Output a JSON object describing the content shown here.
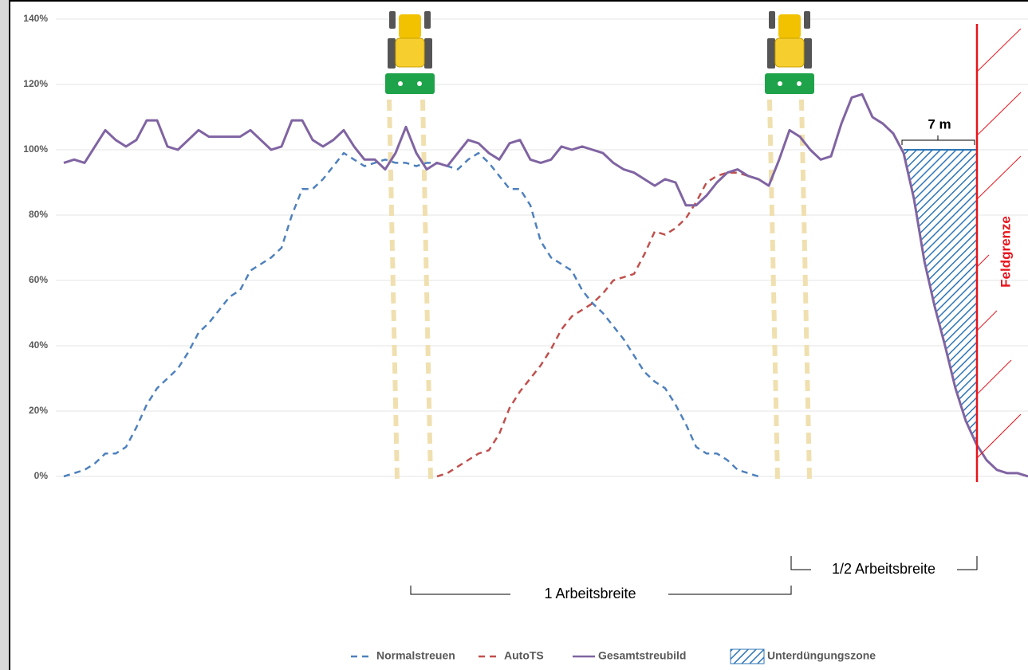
{
  "chart_data": {
    "type": "line",
    "ylim": [
      0,
      140
    ],
    "yticks": [
      {
        "value": 0,
        "label": "0%"
      },
      {
        "value": 20,
        "label": "20%"
      },
      {
        "value": 40,
        "label": "40%"
      },
      {
        "value": 60,
        "label": "60%"
      },
      {
        "value": 80,
        "label": "80%"
      },
      {
        "value": 100,
        "label": "100%"
      },
      {
        "value": 120,
        "label": "120%"
      },
      {
        "value": 140,
        "label": "140%"
      }
    ],
    "grid": true,
    "series": [
      {
        "name": "Normalstreuen",
        "color": "#4f81bd",
        "dash": true,
        "values": [
          0,
          1,
          2,
          4,
          7,
          7,
          9,
          15,
          22,
          27,
          30,
          33,
          38,
          44,
          47,
          51,
          55,
          57,
          63,
          65,
          67,
          70,
          80,
          88,
          88,
          91,
          95,
          99,
          97,
          95,
          96,
          97,
          96,
          96,
          95,
          96,
          96,
          95,
          94,
          97,
          99,
          96,
          92,
          88,
          88,
          83,
          72,
          67,
          65,
          63,
          57,
          53,
          50,
          46,
          42,
          37,
          32,
          29,
          27,
          22,
          16,
          9,
          7,
          7,
          5,
          2,
          1,
          0,
          null,
          null,
          null,
          null,
          null,
          null,
          null,
          null,
          null,
          null,
          null,
          null,
          null,
          null,
          null,
          null,
          null,
          null,
          null,
          null,
          null,
          null,
          null,
          null,
          null,
          null
        ]
      },
      {
        "name": "AutoTS",
        "color": "#c0504d",
        "dash": true,
        "values": [
          null,
          null,
          null,
          null,
          null,
          null,
          null,
          null,
          null,
          null,
          null,
          null,
          null,
          null,
          null,
          null,
          null,
          null,
          null,
          null,
          null,
          null,
          null,
          null,
          null,
          null,
          null,
          null,
          null,
          null,
          null,
          null,
          null,
          null,
          null,
          null,
          0,
          1,
          3,
          5,
          7,
          8,
          13,
          21,
          26,
          30,
          34,
          39,
          45,
          49,
          51,
          53,
          56,
          60,
          61,
          62,
          68,
          75,
          74,
          76,
          79,
          84,
          90,
          92,
          93,
          93,
          92,
          91,
          89,
          null,
          null,
          null,
          null,
          null,
          null,
          null,
          null,
          null,
          null,
          null,
          null,
          null,
          null,
          null,
          null,
          null,
          null,
          null,
          null,
          null,
          null,
          null,
          null,
          null
        ]
      },
      {
        "name": "Gesamtstreubild",
        "color": "#8064a2",
        "dash": false,
        "values": [
          96,
          97,
          96,
          101,
          106,
          103,
          101,
          103,
          109,
          109,
          101,
          100,
          103,
          106,
          104,
          104,
          104,
          104,
          106,
          103,
          100,
          101,
          109,
          109,
          103,
          101,
          103,
          106,
          101,
          97,
          97,
          94,
          99,
          107,
          99,
          94,
          96,
          95,
          99,
          103,
          102,
          99,
          97,
          102,
          103,
          97,
          96,
          97,
          101,
          100,
          101,
          100,
          99,
          96,
          94,
          93,
          91,
          89,
          91,
          90,
          83,
          83,
          86,
          90,
          93,
          94,
          92,
          91,
          89,
          97,
          106,
          104,
          100,
          97,
          98,
          108,
          116,
          117,
          110,
          108,
          105,
          99,
          85,
          66,
          52,
          40,
          27,
          17,
          10,
          5,
          2,
          1,
          1,
          0
        ]
      }
    ],
    "zone": {
      "name": "Unterdüngungszone",
      "color": "#2e75b6",
      "level": 100
    },
    "annotations": {
      "boundary": "Feldgrenze",
      "gap": "7 m",
      "full_width": "1 Arbeitsbreite",
      "half_width": "1/2 Arbeitsbreite"
    }
  }
}
